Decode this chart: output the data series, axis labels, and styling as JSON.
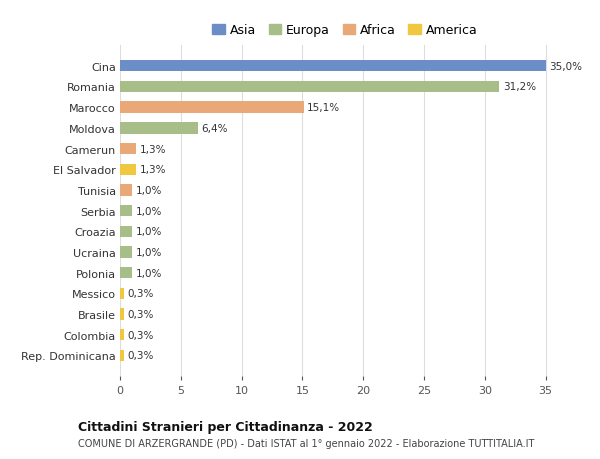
{
  "countries": [
    "Cina",
    "Romania",
    "Marocco",
    "Moldova",
    "Camerun",
    "El Salvador",
    "Tunisia",
    "Serbia",
    "Croazia",
    "Ucraina",
    "Polonia",
    "Messico",
    "Brasile",
    "Colombia",
    "Rep. Dominicana"
  ],
  "values": [
    35.0,
    31.2,
    15.1,
    6.4,
    1.3,
    1.3,
    1.0,
    1.0,
    1.0,
    1.0,
    1.0,
    0.3,
    0.3,
    0.3,
    0.3
  ],
  "labels": [
    "35,0%",
    "31,2%",
    "15,1%",
    "6,4%",
    "1,3%",
    "1,3%",
    "1,0%",
    "1,0%",
    "1,0%",
    "1,0%",
    "1,0%",
    "0,3%",
    "0,3%",
    "0,3%",
    "0,3%"
  ],
  "continents": [
    "Asia",
    "Europa",
    "Africa",
    "Europa",
    "Africa",
    "America",
    "Africa",
    "Europa",
    "Europa",
    "Europa",
    "Europa",
    "America",
    "America",
    "America",
    "America"
  ],
  "colors": {
    "Asia": "#6b8ec9",
    "Europa": "#a8be88",
    "Africa": "#e8a878",
    "America": "#f0c840"
  },
  "legend_order": [
    "Asia",
    "Europa",
    "Africa",
    "America"
  ],
  "title": "Cittadini Stranieri per Cittadinanza - 2022",
  "subtitle": "COMUNE DI ARZERGRANDE (PD) - Dati ISTAT al 1° gennaio 2022 - Elaborazione TUTTITALIA.IT",
  "xlim": [
    0,
    37
  ],
  "xticks": [
    0,
    5,
    10,
    15,
    20,
    25,
    30,
    35
  ],
  "background_color": "#ffffff",
  "grid_color": "#dddddd",
  "bar_height": 0.55
}
